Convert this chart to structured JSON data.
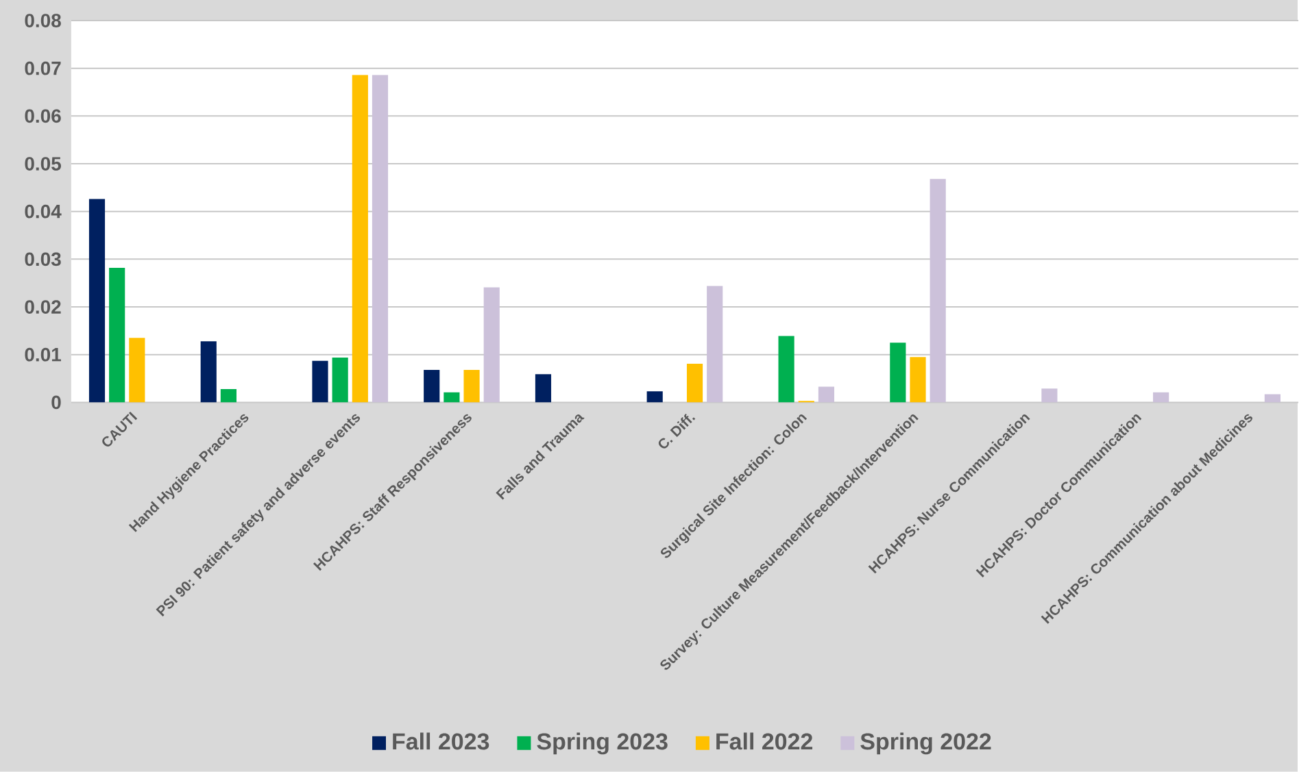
{
  "chart_data": {
    "type": "bar",
    "categories": [
      "CAUTI",
      "Hand Hygiene Practices",
      "PSI 90: Patient safety and adverse events",
      "HCAHPS: Staff Responsiveness",
      "Falls and Trauma",
      "C. Diff.",
      "Surgical Site Infection: Colon",
      "Survey: Culture Measurement/Feedback/Intervention",
      "HCAHPS: Nurse Communication",
      "HCAHPS: Doctor Communication",
      "HCAHPS: Communication about Medicines"
    ],
    "series": [
      {
        "name": "Fall 2023",
        "color": "#002060",
        "values": [
          0.0426,
          0.0128,
          0.0087,
          0.0068,
          0.0059,
          0.0023,
          null,
          null,
          null,
          null,
          null
        ]
      },
      {
        "name": "Spring 2023",
        "color": "#00b050",
        "values": [
          0.0282,
          0.0028,
          0.0094,
          0.0021,
          null,
          null,
          0.0139,
          0.0125,
          null,
          null,
          null
        ]
      },
      {
        "name": "Fall 2022",
        "color": "#ffc000",
        "values": [
          0.0135,
          null,
          0.0686,
          0.0068,
          null,
          0.0081,
          0.0003,
          0.0095,
          null,
          null,
          null
        ]
      },
      {
        "name": "Spring 2022",
        "color": "#ccc1da",
        "values": [
          null,
          null,
          0.0686,
          0.0241,
          null,
          0.0244,
          0.0033,
          0.0468,
          0.0029,
          0.0021,
          0.0017
        ]
      }
    ],
    "ylim": [
      0,
      0.08
    ],
    "yticks": [
      0,
      0.01,
      0.02,
      0.03,
      0.04,
      0.05,
      0.06,
      0.07,
      0.08
    ],
    "grid": "y",
    "legend": "bottom"
  }
}
